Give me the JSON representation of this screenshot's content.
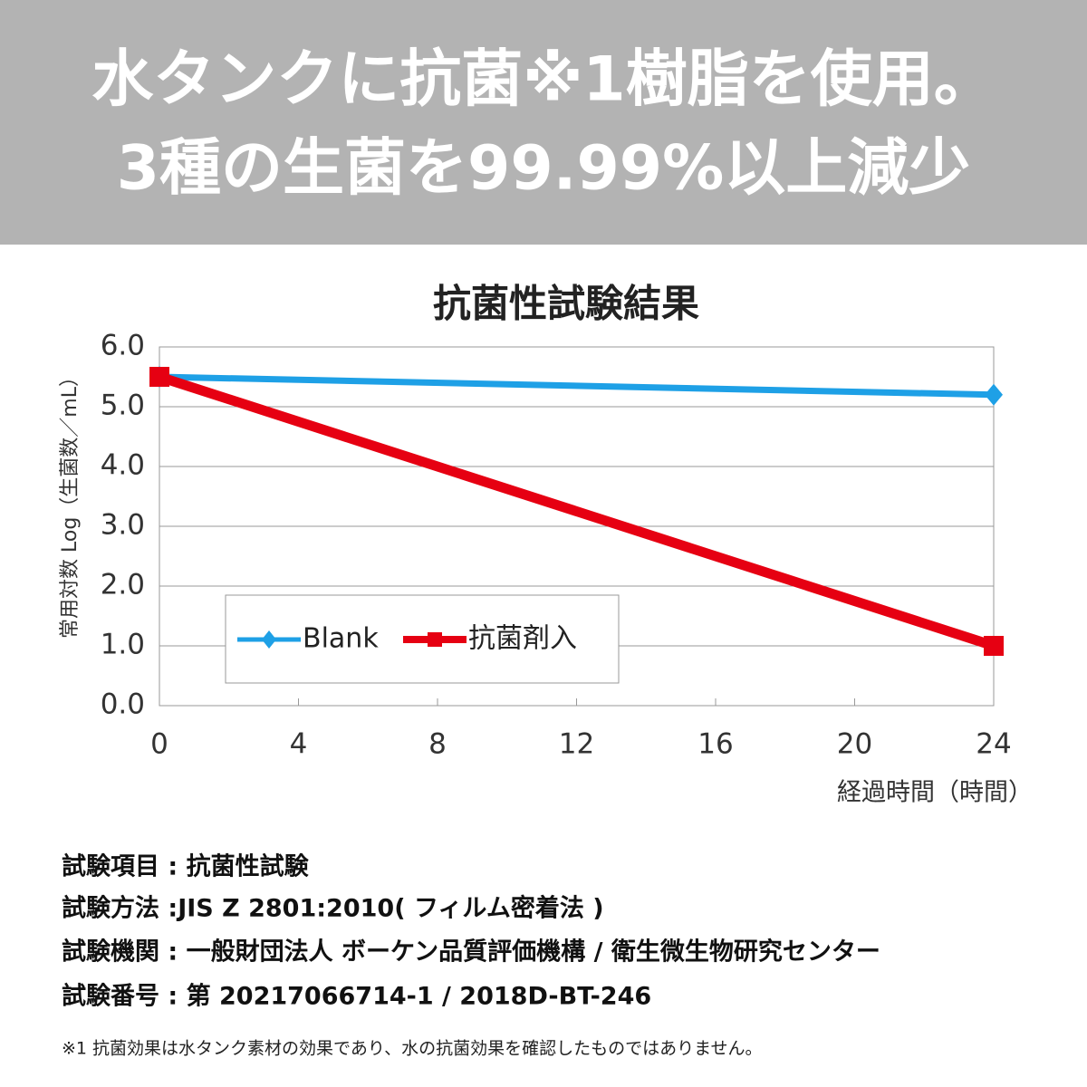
{
  "header": {
    "lines": [
      "水タンクに抗菌※1樹脂を使用。",
      "3種の生菌を99.99%以上減少"
    ]
  },
  "chart_data": {
    "type": "line",
    "title": "抗菌性試験結果",
    "x_label": "経過時間（時間）",
    "y_label": "常用対数 Log（生菌数／mL）",
    "x": [
      0,
      24
    ],
    "series": [
      {
        "name": "Blank",
        "color": "#1ea0e6",
        "marker": "diamond",
        "values": [
          5.5,
          5.2
        ]
      },
      {
        "name": "抗菌剤入",
        "color": "#e60012",
        "marker": "square",
        "values": [
          5.5,
          1.0
        ]
      }
    ],
    "xlim": [
      0,
      24
    ],
    "xticks": [
      0,
      4,
      8,
      12,
      16,
      20,
      24
    ],
    "ylim": [
      0,
      6
    ],
    "yticks": [
      {
        "value": 0,
        "label": "0.0"
      },
      {
        "value": 1,
        "label": "1.0"
      },
      {
        "value": 2,
        "label": "2.0"
      },
      {
        "value": 3,
        "label": "3.0"
      },
      {
        "value": 4,
        "label": "4.0"
      },
      {
        "value": 5,
        "label": "5.0"
      },
      {
        "value": 6,
        "label": "6.0"
      }
    ],
    "grid": true,
    "legend": "lower-left"
  },
  "notes": [
    "試験項目 : 抗菌性試験",
    "試験方法 :JIS Z 2801:2010( フィルム密着法 )",
    "試験機関 : 一般財団法人 ボーケン品質評価機構 / 衛生微生物研究センター",
    "試験番号 : 第 20217066714-1 / 2018D-BT-246"
  ],
  "footnote": "※1 抗菌効果は水タンク素材の効果であり、水の抗菌効果を確認したものではありません。"
}
